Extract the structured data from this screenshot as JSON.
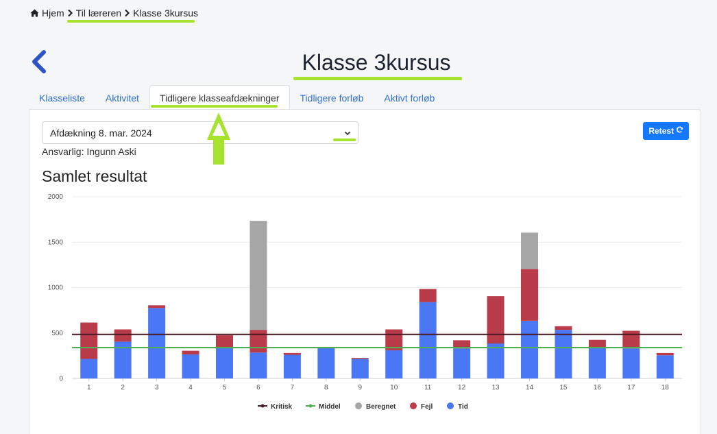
{
  "breadcrumb": {
    "home": "Hjem",
    "teacher": "Til læreren",
    "current": "Klasse 3kursus"
  },
  "page_title": "Klasse 3kursus",
  "tabs": [
    {
      "label": "Klasseliste"
    },
    {
      "label": "Aktivitet"
    },
    {
      "label": "Tidligere klasseafdækninger",
      "active": true
    },
    {
      "label": "Tidligere forløb"
    },
    {
      "label": "Aktivt forløb"
    }
  ],
  "selector": {
    "value": "Afdækning 8. mar. 2024"
  },
  "responsible": "Ansvarlig: Ingunn Aski",
  "retest_label": "Retest",
  "section_title": "Samlet resultat",
  "colors": {
    "tid": "#4a78f5",
    "fejl": "#b93a48",
    "beregnet": "#a6a6a6",
    "kritisk": "#4a1a22",
    "middel": "#4caf50",
    "highlight": "#a6e22e",
    "accent": "#1479ff"
  },
  "icons": {
    "home": "home-icon",
    "chevron": "chevron-right-icon",
    "back": "back-arrow-icon",
    "dropdown": "chevron-down-icon",
    "refresh": "refresh-icon"
  },
  "chart_data": {
    "type": "bar",
    "stacked": true,
    "categories": [
      "1",
      "2",
      "3",
      "4",
      "5",
      "6",
      "7",
      "8",
      "9",
      "10",
      "11",
      "12",
      "13",
      "14",
      "15",
      "16",
      "17",
      "18"
    ],
    "series": [
      {
        "name": "Tid",
        "values": [
          215,
          405,
          775,
          265,
          335,
          285,
          260,
          335,
          215,
          310,
          840,
          330,
          385,
          635,
          535,
          335,
          330,
          255
        ]
      },
      {
        "name": "Fejl",
        "values": [
          400,
          135,
          30,
          40,
          140,
          250,
          20,
          10,
          10,
          230,
          145,
          90,
          520,
          570,
          40,
          90,
          195,
          25
        ]
      },
      {
        "name": "Beregnet",
        "values": [
          0,
          0,
          0,
          0,
          0,
          1200,
          0,
          0,
          0,
          0,
          0,
          0,
          0,
          400,
          0,
          0,
          0,
          0
        ]
      }
    ],
    "lines": [
      {
        "name": "Kritisk",
        "value": 485
      },
      {
        "name": "Middel",
        "value": 340
      }
    ],
    "legend": [
      "Kritisk",
      "Middel",
      "Beregnet",
      "Fejl",
      "Tid"
    ],
    "ylim": [
      0,
      2000
    ],
    "yticks": [
      "0",
      "500",
      "1000",
      "1500",
      "2000"
    ],
    "grid": true,
    "legend_position": "bottom"
  }
}
